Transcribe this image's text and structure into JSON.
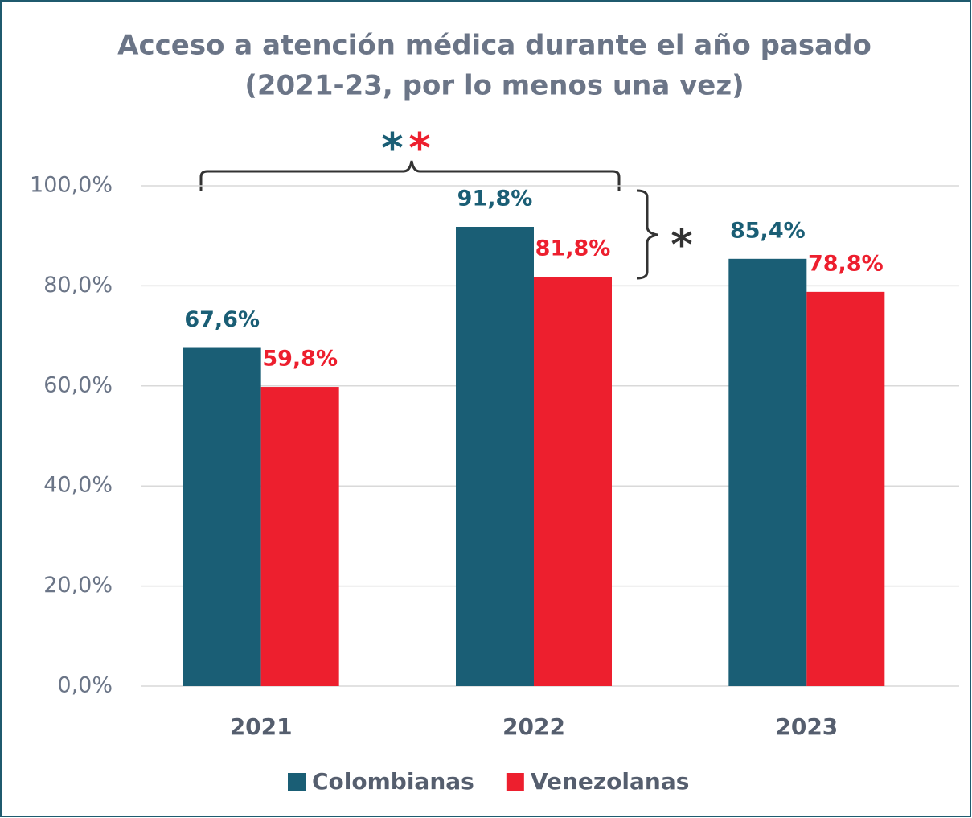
{
  "chart_data": {
    "type": "bar",
    "title": [
      "Acceso a atención médica durante el año pasado",
      "(2021-23, por lo menos una vez)"
    ],
    "categories": [
      "2021",
      "2022",
      "2023"
    ],
    "series": [
      {
        "name": "Colombianas",
        "color": "#1a5e75",
        "values": [
          67.6,
          91.8,
          85.4
        ],
        "value_labels": [
          "67,6%",
          "91,8%",
          "85,4%"
        ]
      },
      {
        "name": "Venezolanas",
        "color": "#ed1f2e",
        "values": [
          59.8,
          81.8,
          78.8
        ],
        "value_labels": [
          "59,8%",
          "81,8%",
          "78,8%"
        ]
      }
    ],
    "ylim": [
      0,
      100
    ],
    "yticks": [
      {
        "value": 0,
        "label": "0,0%"
      },
      {
        "value": 20,
        "label": "20,0%"
      },
      {
        "value": 40,
        "label": "40,0%"
      },
      {
        "value": 60,
        "label": "60,0%"
      },
      {
        "value": 80,
        "label": "80,0%"
      },
      {
        "value": 100,
        "label": "100,0%"
      }
    ],
    "grid": true,
    "legend": "bottom",
    "annotations": [
      {
        "text": "*",
        "color": "#1a5e75"
      },
      {
        "text": "*",
        "color": "#ed1f2e"
      },
      {
        "text": "*",
        "color": "#333333"
      }
    ]
  }
}
